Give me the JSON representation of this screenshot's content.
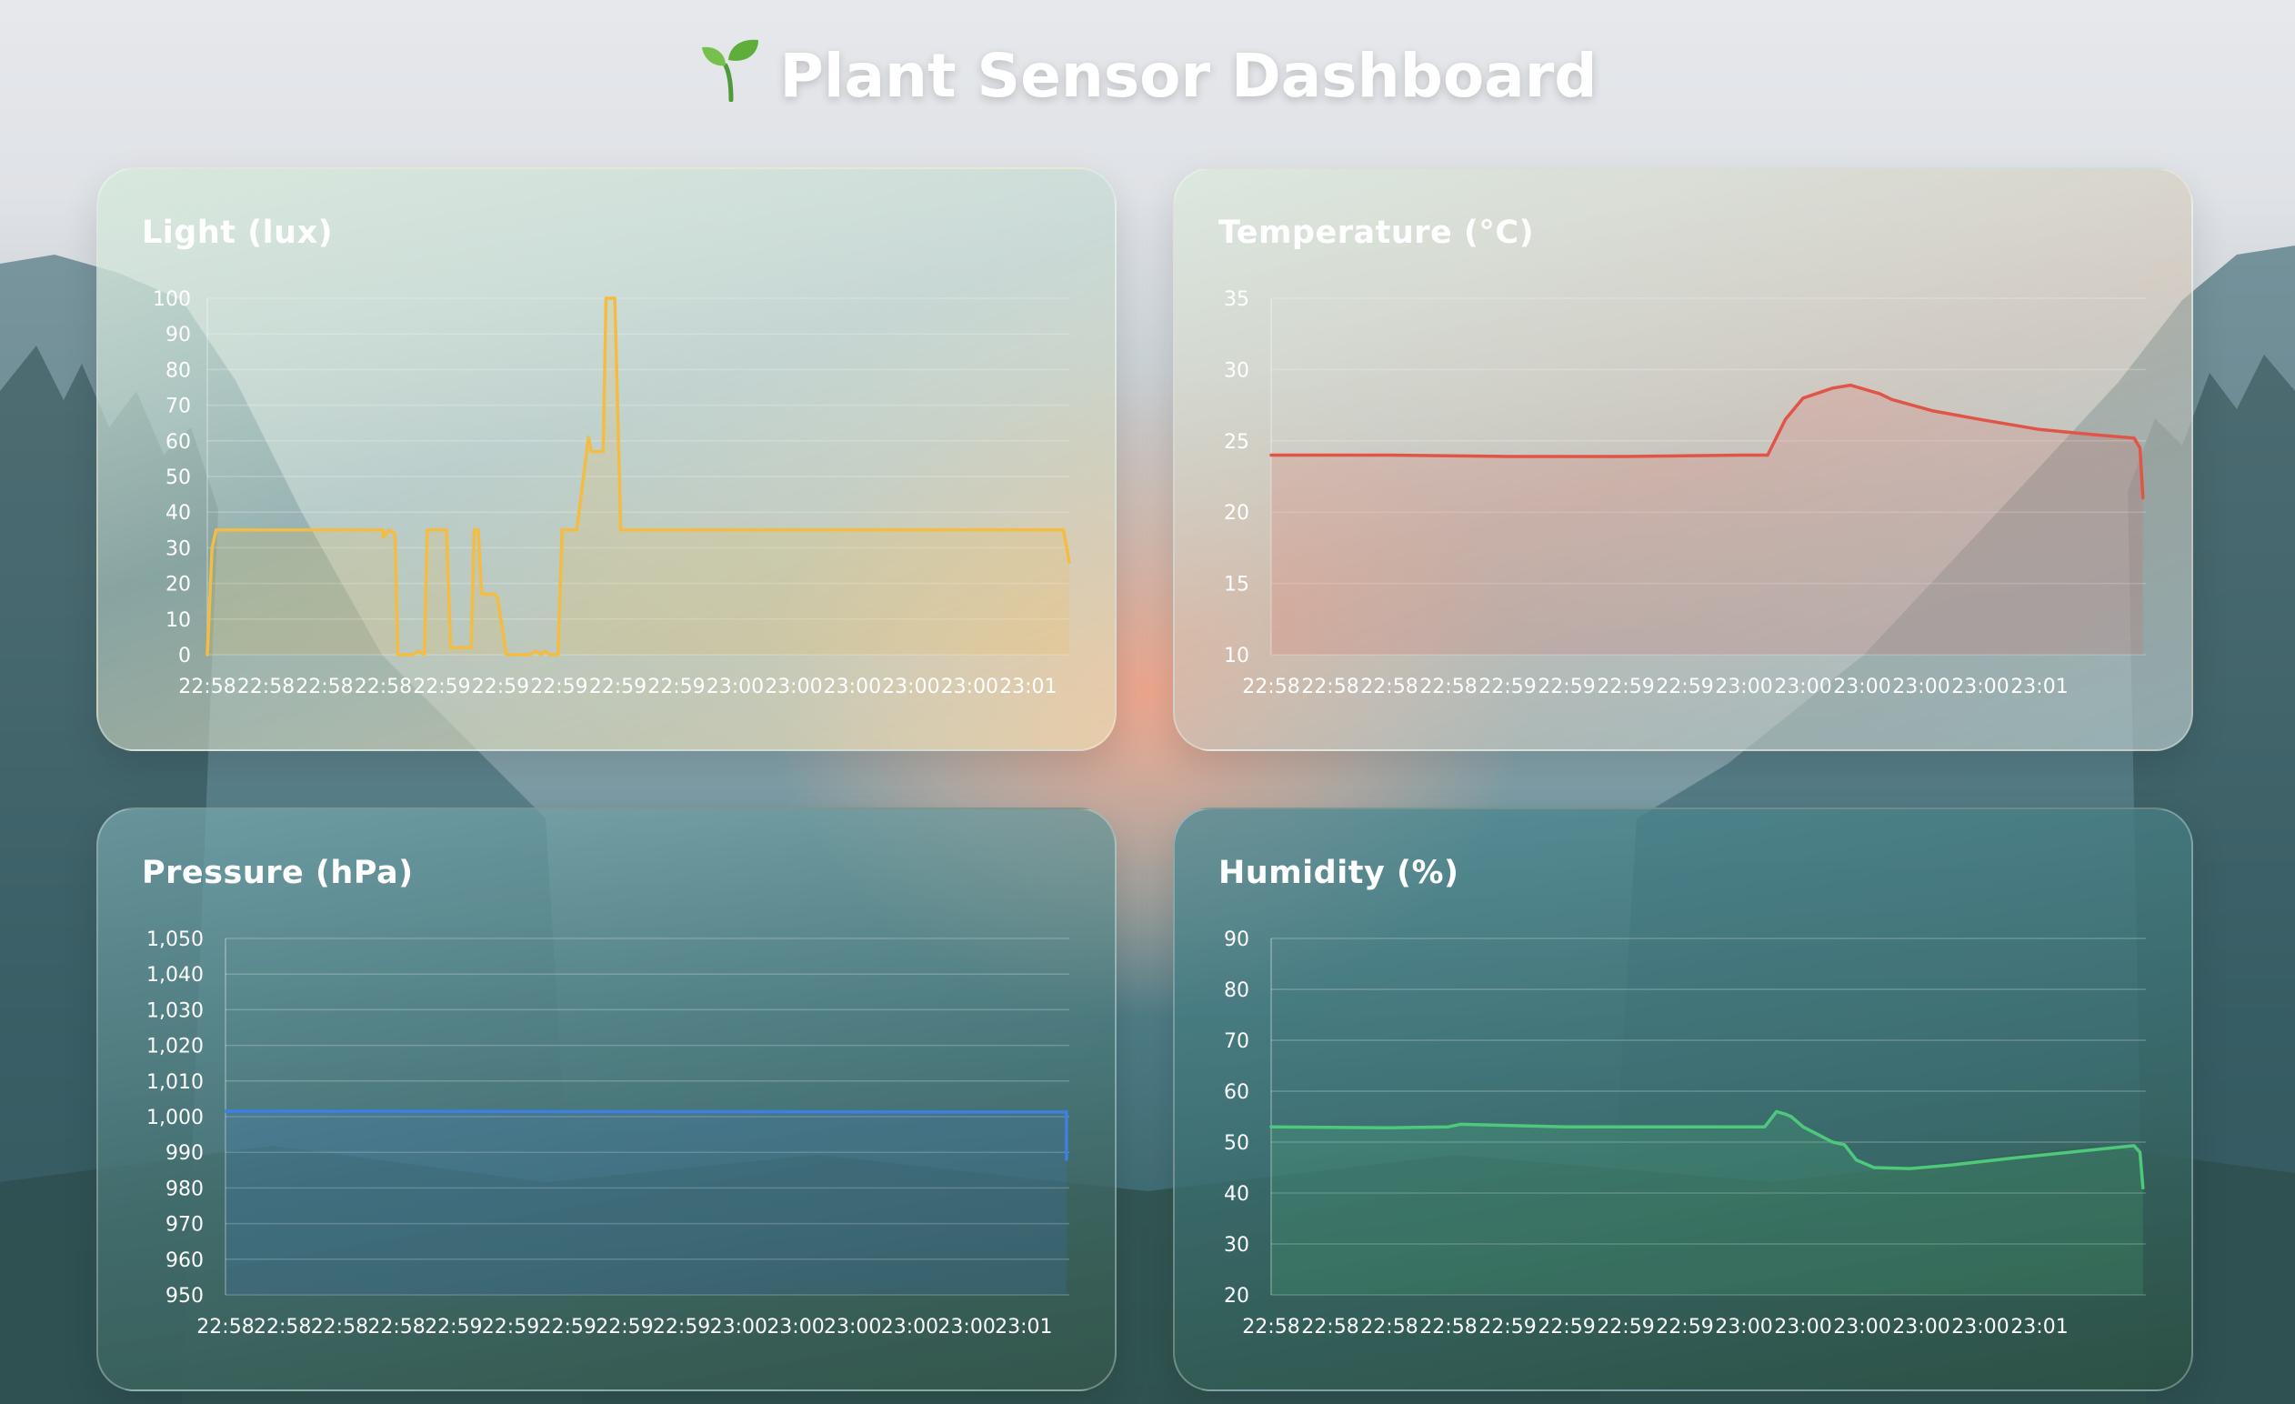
{
  "page": {
    "title": "Plant Sensor Dashboard",
    "title_icon": "seedling-icon"
  },
  "colors": {
    "light": "#f2bd42",
    "temperature": "#e05548",
    "pressure": "#3f7fe0",
    "humidity": "#4ec97c"
  },
  "chart_data": [
    {
      "id": "light",
      "type": "area",
      "title": "Light (lux)",
      "xlabel": "",
      "ylabel": "",
      "ylim": [
        0,
        100
      ],
      "yticks": [
        0,
        10,
        20,
        30,
        40,
        50,
        60,
        70,
        80,
        90,
        100
      ],
      "xticks": [
        "22:58",
        "22:58",
        "22:58",
        "22:58",
        "22:59",
        "22:59",
        "22:59",
        "22:59",
        "22:59",
        "23:00",
        "23:00",
        "23:00",
        "23:00",
        "23:00",
        "23:01"
      ],
      "xlim": [
        0,
        14.7
      ],
      "grid": true,
      "points": [
        [
          0,
          0
        ],
        [
          0.08,
          30
        ],
        [
          0.15,
          35
        ],
        [
          3,
          35
        ],
        [
          3,
          33
        ],
        [
          3.1,
          35
        ],
        [
          3.2,
          34
        ],
        [
          3.25,
          0
        ],
        [
          3.5,
          0
        ],
        [
          3.6,
          1
        ],
        [
          3.7,
          0
        ],
        [
          3.75,
          35
        ],
        [
          4,
          35
        ],
        [
          4.08,
          35
        ],
        [
          4.15,
          2
        ],
        [
          4.5,
          2
        ],
        [
          4.55,
          35
        ],
        [
          4.62,
          35
        ],
        [
          4.68,
          17
        ],
        [
          4.9,
          17
        ],
        [
          4.95,
          16
        ],
        [
          5.1,
          0
        ],
        [
          5.5,
          0
        ],
        [
          5.6,
          1
        ],
        [
          5.7,
          0
        ],
        [
          5.75,
          1
        ],
        [
          5.85,
          0
        ],
        [
          5.98,
          0
        ],
        [
          6.05,
          35
        ],
        [
          6.3,
          35
        ],
        [
          6.5,
          61
        ],
        [
          6.55,
          57
        ],
        [
          6.75,
          57
        ],
        [
          6.8,
          100
        ],
        [
          6.95,
          100
        ],
        [
          7.05,
          35
        ],
        [
          7.15,
          35
        ],
        [
          14.6,
          35
        ],
        [
          14.7,
          26
        ]
      ]
    },
    {
      "id": "temperature",
      "type": "area",
      "title": "Temperature (°C)",
      "xlabel": "",
      "ylabel": "",
      "ylim": [
        10,
        35
      ],
      "yticks": [
        10,
        15,
        20,
        25,
        30,
        35
      ],
      "xticks": [
        "22:58",
        "22:58",
        "22:58",
        "22:58",
        "22:59",
        "22:59",
        "22:59",
        "22:59",
        "23:00",
        "23:00",
        "23:00",
        "23:00",
        "23:00",
        "23:01"
      ],
      "xlim": [
        0,
        14.8
      ],
      "grid": true,
      "points": [
        [
          0,
          24
        ],
        [
          2,
          24
        ],
        [
          4,
          23.9
        ],
        [
          6,
          23.9
        ],
        [
          8,
          24
        ],
        [
          8.4,
          24
        ],
        [
          8.7,
          26.5
        ],
        [
          9,
          28
        ],
        [
          9.5,
          28.7
        ],
        [
          9.8,
          28.9
        ],
        [
          10.3,
          28.3
        ],
        [
          10.5,
          27.9
        ],
        [
          11.2,
          27.1
        ],
        [
          12,
          26.5
        ],
        [
          13,
          25.8
        ],
        [
          14,
          25.4
        ],
        [
          14.6,
          25.2
        ],
        [
          14.7,
          24.5
        ],
        [
          14.75,
          21
        ]
      ]
    },
    {
      "id": "pressure",
      "type": "area",
      "title": "Pressure (hPa)",
      "xlabel": "",
      "ylabel": "",
      "ylim": [
        950,
        1050
      ],
      "yticks": [
        950,
        960,
        970,
        980,
        990,
        1000,
        1010,
        1020,
        1030,
        1040,
        1050
      ],
      "number_format": "thousands",
      "xticks": [
        "22:58",
        "22:58",
        "22:58",
        "22:58",
        "22:59",
        "22:59",
        "22:59",
        "22:59",
        "22:59",
        "23:00",
        "23:00",
        "23:00",
        "23:00",
        "23:00",
        "23:01"
      ],
      "xlim": [
        0,
        14.8
      ],
      "grid": true,
      "points": [
        [
          0,
          1001.5
        ],
        [
          3,
          1001.5
        ],
        [
          6,
          1001.4
        ],
        [
          9,
          1001.4
        ],
        [
          12,
          1001.3
        ],
        [
          14.75,
          1001.3
        ],
        [
          14.75,
          988
        ]
      ]
    },
    {
      "id": "humidity",
      "type": "area",
      "title": "Humidity (%)",
      "xlabel": "",
      "ylabel": "",
      "ylim": [
        20,
        90
      ],
      "yticks": [
        20,
        30,
        40,
        50,
        60,
        70,
        80,
        90
      ],
      "xticks": [
        "22:58",
        "22:58",
        "22:58",
        "22:58",
        "22:59",
        "22:59",
        "22:59",
        "22:59",
        "23:00",
        "23:00",
        "23:00",
        "23:00",
        "23:00",
        "23:01"
      ],
      "xlim": [
        0,
        14.8
      ],
      "grid": true,
      "points": [
        [
          0,
          53
        ],
        [
          2,
          52.8
        ],
        [
          3,
          53
        ],
        [
          3.2,
          53.5
        ],
        [
          5,
          53
        ],
        [
          8,
          53
        ],
        [
          8.35,
          53
        ],
        [
          8.55,
          56
        ],
        [
          8.7,
          55.5
        ],
        [
          8.8,
          55
        ],
        [
          9,
          53
        ],
        [
          9.5,
          50
        ],
        [
          9.7,
          49.5
        ],
        [
          9.9,
          46.5
        ],
        [
          10.2,
          45
        ],
        [
          10.8,
          44.8
        ],
        [
          11.5,
          45.5
        ],
        [
          12.5,
          46.8
        ],
        [
          13.5,
          48
        ],
        [
          14.6,
          49.3
        ],
        [
          14.7,
          48
        ],
        [
          14.75,
          41
        ]
      ]
    }
  ]
}
